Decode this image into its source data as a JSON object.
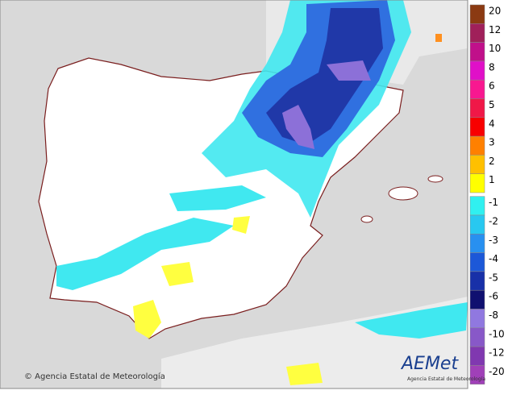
{
  "legend": {
    "items": [
      {
        "label": "20",
        "color": "#8b3a12"
      },
      {
        "label": "12",
        "color": "#a0205a"
      },
      {
        "label": "10",
        "color": "#c0108a"
      },
      {
        "label": "8",
        "color": "#e010c8"
      },
      {
        "label": "6",
        "color": "#f81890"
      },
      {
        "label": "5",
        "color": "#f01848"
      },
      {
        "label": "4",
        "color": "#f80000"
      },
      {
        "label": "3",
        "color": "#ff8000"
      },
      {
        "label": "2",
        "color": "#ffc000"
      },
      {
        "label": "1",
        "color": "#ffff00"
      },
      {
        "label": "-1",
        "color": "#30f0f0"
      },
      {
        "label": "-2",
        "color": "#28c8f0"
      },
      {
        "label": "-3",
        "color": "#2890f0"
      },
      {
        "label": "-4",
        "color": "#1c58d8"
      },
      {
        "label": "-5",
        "color": "#1830a8"
      },
      {
        "label": "-6",
        "color": "#101070"
      },
      {
        "label": "-8",
        "color": "#9078e0"
      },
      {
        "label": "-10",
        "color": "#8858c8"
      },
      {
        "label": "-12",
        "color": "#8038b0"
      },
      {
        "label": "-20",
        "color": "#a040b8"
      }
    ]
  },
  "footer": {
    "copyright": "© Agencia Estatal de Meteorología",
    "logo": "AEMet",
    "logo_subtitle": "Agencia Estatal de Meteorología"
  }
}
